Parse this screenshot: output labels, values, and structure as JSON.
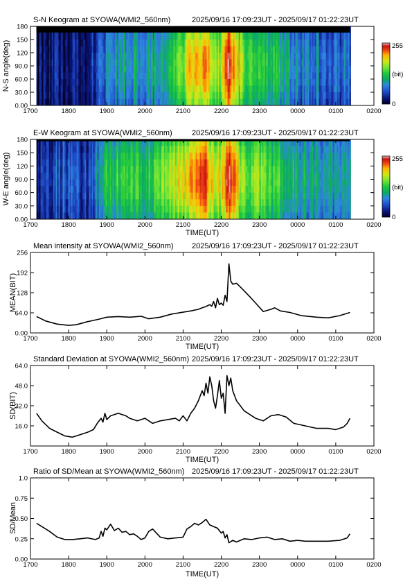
{
  "figure": {
    "station": "SYOWA",
    "instrument": "WMI2_560nm",
    "time_range": "2025/09/16 17:09:23UT - 2025/09/17 01:22:23UT"
  },
  "colors": {
    "line": "#000000",
    "background": "#ffffff",
    "no_data": "#000000",
    "colormap": [
      "#000028",
      "#0a1478",
      "#1e4bc8",
      "#2d87e1",
      "#0aaa64",
      "#1ec83c",
      "#78e632",
      "#d2e614",
      "#ffb400",
      "#f04614",
      "#c8140a",
      "#f0c8c8"
    ]
  },
  "chart_data": [
    {
      "type": "heatmap",
      "title": "S-N Keogram at SYOWA(WMI2_560nm)",
      "time_range": "2025/09/16 17:09:23UT - 2025/09/17 01:22:23UT",
      "xlabel": "",
      "ylabel": "N-S angle(deg)",
      "xticks": [
        "1700",
        "1800",
        "1900",
        "2000",
        "2100",
        "2200",
        "2300",
        "0000",
        "0100",
        "0200"
      ],
      "yticks": [
        "0.00",
        "30.0",
        "60.0",
        "90.0",
        "120",
        "150",
        "180"
      ],
      "xlim": [
        17.0,
        26.0
      ],
      "ylim": [
        0,
        180
      ],
      "data_x_range": [
        17.156,
        25.373
      ],
      "colorbar": {
        "min": "0",
        "max": "255",
        "label": "(bit)"
      },
      "intensity_profile": [
        [
          17.16,
          0.06
        ],
        [
          17.5,
          0.07
        ],
        [
          17.8,
          0.08
        ],
        [
          18.4,
          0.1
        ],
        [
          18.8,
          0.18
        ],
        [
          19.0,
          0.26
        ],
        [
          19.3,
          0.32
        ],
        [
          19.6,
          0.34
        ],
        [
          20.0,
          0.3
        ],
        [
          20.4,
          0.38
        ],
        [
          20.8,
          0.5
        ],
        [
          21.0,
          0.56
        ],
        [
          21.2,
          0.72
        ],
        [
          21.35,
          0.66
        ],
        [
          21.55,
          0.82
        ],
        [
          21.7,
          0.6
        ],
        [
          21.9,
          0.55
        ],
        [
          22.05,
          0.62
        ],
        [
          22.15,
          0.9
        ],
        [
          22.3,
          0.74
        ],
        [
          22.5,
          0.55
        ],
        [
          22.8,
          0.45
        ],
        [
          23.0,
          0.48
        ],
        [
          23.3,
          0.42
        ],
        [
          23.5,
          0.38
        ],
        [
          23.8,
          0.3
        ],
        [
          24.3,
          0.26
        ],
        [
          24.7,
          0.24
        ],
        [
          25.0,
          0.22
        ],
        [
          25.37,
          0.24
        ]
      ]
    },
    {
      "type": "heatmap",
      "title": "E-W Keogram at SYOWA(WMI2_560nm)",
      "time_range": "2025/09/16 17:09:23UT - 2025/09/17 01:22:23UT",
      "xlabel": "TIME(UT)",
      "ylabel": "W-E angle(deg)",
      "xticks": [
        "1700",
        "1800",
        "1900",
        "2000",
        "2100",
        "2200",
        "2300",
        "0000",
        "0100",
        "0200"
      ],
      "yticks": [
        "0.00",
        "30.0",
        "60.0",
        "90.0",
        "120",
        "150",
        "180"
      ],
      "xlim": [
        17.0,
        26.0
      ],
      "ylim": [
        0,
        180
      ],
      "data_x_range": [
        17.156,
        25.373
      ],
      "colorbar": {
        "min": "0",
        "max": "255",
        "label": "(bit)"
      },
      "intensity_profile": [
        [
          17.16,
          0.12
        ],
        [
          17.5,
          0.18
        ],
        [
          17.8,
          0.2
        ],
        [
          18.2,
          0.22
        ],
        [
          18.45,
          0.12
        ],
        [
          18.8,
          0.34
        ],
        [
          19.0,
          0.4
        ],
        [
          19.3,
          0.44
        ],
        [
          19.6,
          0.46
        ],
        [
          20.0,
          0.42
        ],
        [
          20.4,
          0.52
        ],
        [
          20.8,
          0.62
        ],
        [
          21.0,
          0.64
        ],
        [
          21.2,
          0.78
        ],
        [
          21.35,
          0.7
        ],
        [
          21.55,
          0.86
        ],
        [
          21.7,
          0.64
        ],
        [
          21.9,
          0.6
        ],
        [
          22.05,
          0.66
        ],
        [
          22.15,
          0.94
        ],
        [
          22.3,
          0.78
        ],
        [
          22.5,
          0.6
        ],
        [
          22.8,
          0.5
        ],
        [
          23.0,
          0.52
        ],
        [
          23.3,
          0.46
        ],
        [
          23.5,
          0.42
        ],
        [
          23.8,
          0.38
        ],
        [
          24.3,
          0.34
        ],
        [
          24.7,
          0.32
        ],
        [
          25.0,
          0.3
        ],
        [
          25.37,
          0.32
        ]
      ]
    },
    {
      "type": "line",
      "title": "Mean intensity at SYOWA(WMI2_560nm)",
      "time_range": "2025/09/16 17:09:23UT - 2025/09/17 01:22:23UT",
      "xlabel": "TIME(UT)",
      "ylabel": "MEAN(BIT)",
      "xticks": [
        "1700",
        "1800",
        "1900",
        "2000",
        "2100",
        "2200",
        "2300",
        "0000",
        "0100",
        "0200"
      ],
      "yticks": [
        "0.00",
        "64.0",
        "128",
        "192",
        "256"
      ],
      "xlim": [
        17.0,
        26.0
      ],
      "ylim": [
        0,
        256
      ],
      "x": [
        17.16,
        17.4,
        17.7,
        18.0,
        18.2,
        18.5,
        18.8,
        19.0,
        19.3,
        19.6,
        19.9,
        20.1,
        20.4,
        20.7,
        21.0,
        21.2,
        21.4,
        21.5,
        21.6,
        21.7,
        21.75,
        21.8,
        21.85,
        21.9,
        21.95,
        22.0,
        22.05,
        22.1,
        22.15,
        22.2,
        22.25,
        22.3,
        22.4,
        22.55,
        22.75,
        22.9,
        23.1,
        23.3,
        23.4,
        23.55,
        23.8,
        24.1,
        24.5,
        24.8,
        25.1,
        25.373
      ],
      "y": [
        52,
        38,
        28,
        24,
        26,
        36,
        44,
        50,
        52,
        50,
        53,
        45,
        50,
        60,
        66,
        70,
        75,
        80,
        84,
        90,
        85,
        100,
        80,
        110,
        90,
        95,
        88,
        120,
        100,
        220,
        165,
        155,
        158,
        140,
        115,
        95,
        68,
        75,
        80,
        70,
        65,
        55,
        50,
        48,
        55,
        65
      ]
    },
    {
      "type": "line",
      "title": "Standard Deviation at SYOWA(WMI2_560nm)",
      "time_range": "2025/09/16 17:09:23UT - 2025/09/17 01:22:23UT",
      "xlabel": "TIME(UT)",
      "ylabel": "SD(BIT)",
      "xticks": [
        "1700",
        "1800",
        "1900",
        "2000",
        "2100",
        "2200",
        "2300",
        "0000",
        "0100",
        "0200"
      ],
      "yticks": [
        "16.0",
        "32.0",
        "48.0",
        "64.0"
      ],
      "xlim": [
        17.0,
        26.0
      ],
      "ylim": [
        0,
        64
      ],
      "x": [
        17.16,
        17.3,
        17.5,
        17.7,
        17.9,
        18.1,
        18.3,
        18.5,
        18.65,
        18.75,
        18.85,
        18.9,
        18.95,
        19.0,
        19.1,
        19.3,
        19.5,
        19.6,
        19.8,
        20.0,
        20.2,
        20.4,
        20.6,
        20.8,
        20.9,
        21.0,
        21.1,
        21.2,
        21.3,
        21.4,
        21.5,
        21.55,
        21.6,
        21.65,
        21.7,
        21.75,
        21.8,
        21.85,
        21.9,
        21.95,
        22.0,
        22.05,
        22.1,
        22.15,
        22.2,
        22.25,
        22.3,
        22.35,
        22.4,
        22.5,
        22.6,
        22.75,
        22.9,
        23.1,
        23.3,
        23.5,
        23.7,
        23.9,
        24.2,
        24.5,
        24.8,
        25.0,
        25.2,
        25.3,
        25.373
      ],
      "y": [
        26,
        20,
        14,
        11,
        8,
        7,
        9,
        11,
        13,
        18,
        22,
        19,
        26,
        21,
        24,
        26,
        24,
        22,
        20,
        22,
        18,
        20,
        21,
        22,
        20,
        24,
        20,
        26,
        30,
        36,
        44,
        40,
        50,
        42,
        55,
        48,
        36,
        30,
        40,
        52,
        38,
        42,
        26,
        56,
        48,
        54,
        44,
        40,
        36,
        32,
        28,
        25,
        22,
        20,
        24,
        25,
        23,
        18,
        16,
        14,
        14,
        13,
        15,
        18,
        22
      ]
    },
    {
      "type": "line",
      "title": "Ratio of SD/Mean at SYOWA(WMI2_560nm)",
      "time_range": "2025/09/16 17:09:23UT - 2025/09/17 01:22:23UT",
      "xlabel": "TIME(UT)",
      "ylabel": "SD/Mean",
      "xticks": [
        "1700",
        "1800",
        "1900",
        "2000",
        "2100",
        "2200",
        "2300",
        "0000",
        "0100",
        "0200"
      ],
      "yticks": [
        "0.00",
        "0.25",
        "0.50",
        "0.75",
        "1.0"
      ],
      "xlim": [
        17.0,
        26.0
      ],
      "ylim": [
        0,
        1.0
      ],
      "x": [
        17.16,
        17.3,
        17.5,
        17.7,
        17.9,
        18.1,
        18.3,
        18.5,
        18.7,
        18.8,
        18.85,
        18.9,
        18.95,
        19.0,
        19.1,
        19.2,
        19.3,
        19.4,
        19.5,
        19.6,
        19.7,
        19.8,
        19.9,
        20.0,
        20.1,
        20.2,
        20.4,
        20.6,
        20.8,
        21.0,
        21.1,
        21.2,
        21.3,
        21.4,
        21.5,
        21.6,
        21.7,
        21.8,
        21.9,
        22.0,
        22.05,
        22.1,
        22.15,
        22.2,
        22.3,
        22.4,
        22.6,
        22.8,
        23.0,
        23.2,
        23.4,
        23.6,
        23.8,
        24.0,
        24.2,
        24.5,
        24.8,
        25.1,
        25.3,
        25.373
      ],
      "y": [
        0.44,
        0.4,
        0.34,
        0.27,
        0.24,
        0.24,
        0.25,
        0.26,
        0.24,
        0.26,
        0.34,
        0.28,
        0.38,
        0.36,
        0.43,
        0.35,
        0.38,
        0.33,
        0.34,
        0.3,
        0.31,
        0.28,
        0.24,
        0.26,
        0.34,
        0.37,
        0.27,
        0.25,
        0.26,
        0.27,
        0.37,
        0.4,
        0.44,
        0.42,
        0.45,
        0.49,
        0.42,
        0.4,
        0.38,
        0.32,
        0.34,
        0.26,
        0.3,
        0.2,
        0.23,
        0.21,
        0.25,
        0.24,
        0.26,
        0.27,
        0.24,
        0.25,
        0.22,
        0.23,
        0.22,
        0.22,
        0.22,
        0.23,
        0.26,
        0.31
      ]
    }
  ]
}
